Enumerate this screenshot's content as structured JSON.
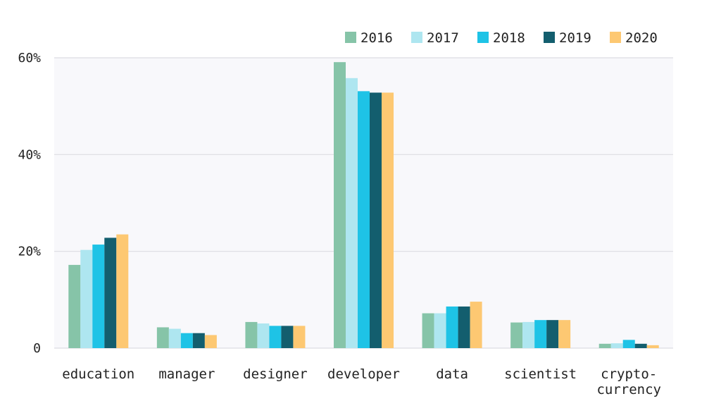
{
  "chart_data": {
    "type": "bar",
    "categories": [
      [
        "education"
      ],
      [
        "manager"
      ],
      [
        "designer"
      ],
      [
        "developer"
      ],
      [
        "data"
      ],
      [
        "scientist"
      ],
      [
        "crypto-",
        "currency"
      ]
    ],
    "series": [
      {
        "name": "2016",
        "color": "#86c4a8",
        "values": [
          17.2,
          4.3,
          5.4,
          59.1,
          7.2,
          5.3,
          0.9
        ]
      },
      {
        "name": "2017",
        "color": "#aee6f0",
        "values": [
          20.3,
          4.0,
          5.1,
          55.8,
          7.2,
          5.4,
          1.0
        ]
      },
      {
        "name": "2018",
        "color": "#1ec3e6",
        "values": [
          21.4,
          3.1,
          4.6,
          53.1,
          8.6,
          5.8,
          1.7
        ]
      },
      {
        "name": "2019",
        "color": "#135e6e",
        "values": [
          22.8,
          3.1,
          4.6,
          52.8,
          8.6,
          5.8,
          0.9
        ]
      },
      {
        "name": "2020",
        "color": "#fdc872",
        "values": [
          23.5,
          2.7,
          4.6,
          52.8,
          9.6,
          5.8,
          0.6
        ]
      }
    ],
    "y_ticks": [
      {
        "value": 0,
        "label": "0"
      },
      {
        "value": 20,
        "label": "20%"
      },
      {
        "value": 40,
        "label": "40%"
      },
      {
        "value": 60,
        "label": "60%"
      }
    ],
    "ylim": [
      0,
      60
    ],
    "grid": true,
    "legend_position": "top-right",
    "title": "",
    "xlabel": "",
    "ylabel": ""
  }
}
